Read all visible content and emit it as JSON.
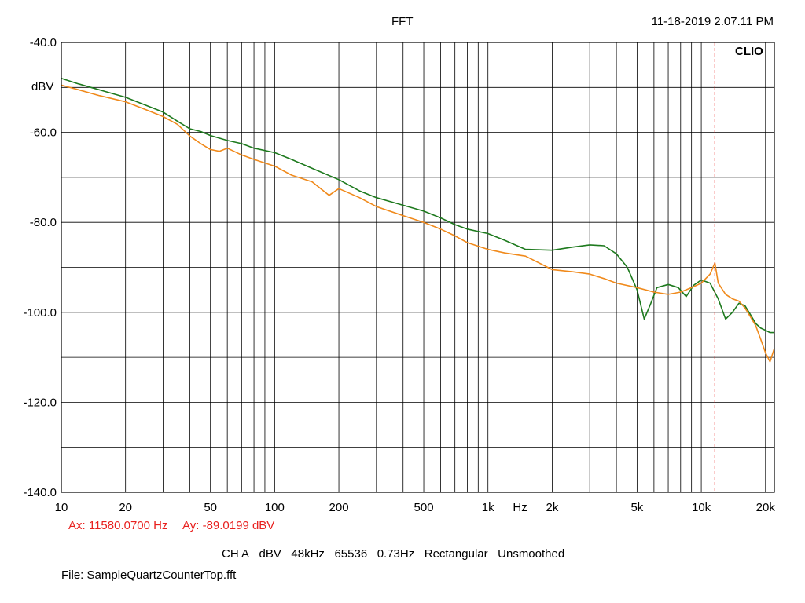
{
  "header": {
    "title": "FFT",
    "timestamp": "11-18-2019 2.07.11 PM"
  },
  "brand": "CLIO",
  "cursor": {
    "ax_text": "Ax: 11580.0700 Hz",
    "ay_text": "Ay: -89.0199 dBV",
    "freq_hz": 11580.07,
    "color": "#e8201e"
  },
  "settings": {
    "channel": "CH A",
    "unit": "dBV",
    "sample_rate": "48kHz",
    "fft_size": "65536",
    "resolution": "0.73Hz",
    "window": "Rectangular",
    "smoothing": "Unsmoothed"
  },
  "file_label": "File: SampleQuartzCounterTop.fft",
  "chart_data": {
    "type": "line",
    "x_scale": "log",
    "xlim": [
      10,
      22000
    ],
    "ylim": [
      -140,
      -40
    ],
    "y_unit_label": "dBV",
    "x_unit_label": "Hz",
    "grid": true,
    "x_ticks": [
      {
        "value": 10,
        "label": "10"
      },
      {
        "value": 20,
        "label": "20"
      },
      {
        "value": 50,
        "label": "50"
      },
      {
        "value": 100,
        "label": "100"
      },
      {
        "value": 200,
        "label": "200"
      },
      {
        "value": 500,
        "label": "500"
      },
      {
        "value": 1000,
        "label": "1k"
      },
      {
        "value": 2000,
        "label": "2k"
      },
      {
        "value": 5000,
        "label": "5k"
      },
      {
        "value": 10000,
        "label": "10k"
      },
      {
        "value": 20000,
        "label": "20k"
      }
    ],
    "y_ticks": [
      {
        "value": -40,
        "label": "-40.0"
      },
      {
        "value": -60,
        "label": "-60.0"
      },
      {
        "value": -80,
        "label": "-80.0"
      },
      {
        "value": -100,
        "label": "-100.0"
      },
      {
        "value": -120,
        "label": "-120.0"
      },
      {
        "value": -140,
        "label": "-140.0"
      }
    ],
    "series": [
      {
        "color": "#1e7a1e",
        "points": [
          [
            10,
            -48.0
          ],
          [
            12,
            -49.2
          ],
          [
            15,
            -50.5
          ],
          [
            20,
            -52.2
          ],
          [
            25,
            -54.0
          ],
          [
            30,
            -55.5
          ],
          [
            35,
            -57.5
          ],
          [
            40,
            -59.2
          ],
          [
            45,
            -59.8
          ],
          [
            50,
            -60.7
          ],
          [
            60,
            -61.8
          ],
          [
            70,
            -62.5
          ],
          [
            80,
            -63.5
          ],
          [
            100,
            -64.5
          ],
          [
            120,
            -66.0
          ],
          [
            150,
            -68.0
          ],
          [
            200,
            -70.5
          ],
          [
            250,
            -73.0
          ],
          [
            300,
            -74.5
          ],
          [
            400,
            -76.2
          ],
          [
            500,
            -77.5
          ],
          [
            600,
            -79.0
          ],
          [
            700,
            -80.5
          ],
          [
            800,
            -81.5
          ],
          [
            1000,
            -82.5
          ],
          [
            1200,
            -84.0
          ],
          [
            1500,
            -86.0
          ],
          [
            2000,
            -86.2
          ],
          [
            2500,
            -85.5
          ],
          [
            3000,
            -85.0
          ],
          [
            3500,
            -85.2
          ],
          [
            4000,
            -87.0
          ],
          [
            4500,
            -90.0
          ],
          [
            5000,
            -95.0
          ],
          [
            5400,
            -101.5
          ],
          [
            5800,
            -98.0
          ],
          [
            6200,
            -94.5
          ],
          [
            7000,
            -93.8
          ],
          [
            7800,
            -94.5
          ],
          [
            8500,
            -96.5
          ],
          [
            9200,
            -94.0
          ],
          [
            10000,
            -92.8
          ],
          [
            11000,
            -93.5
          ],
          [
            12000,
            -97.0
          ],
          [
            13000,
            -101.5
          ],
          [
            14000,
            -100.0
          ],
          [
            15000,
            -98.0
          ],
          [
            16000,
            -98.5
          ],
          [
            17000,
            -100.5
          ],
          [
            18000,
            -102.5
          ],
          [
            19000,
            -103.5
          ],
          [
            20000,
            -104.0
          ],
          [
            21000,
            -104.5
          ],
          [
            22000,
            -104.5
          ]
        ]
      },
      {
        "color": "#f08a1c",
        "points": [
          [
            10,
            -49.5
          ],
          [
            12,
            -50.5
          ],
          [
            15,
            -51.8
          ],
          [
            20,
            -53.2
          ],
          [
            25,
            -55.0
          ],
          [
            30,
            -56.5
          ],
          [
            35,
            -58.2
          ],
          [
            40,
            -60.8
          ],
          [
            45,
            -62.5
          ],
          [
            50,
            -63.8
          ],
          [
            55,
            -64.2
          ],
          [
            60,
            -63.5
          ],
          [
            70,
            -65.0
          ],
          [
            80,
            -66.0
          ],
          [
            100,
            -67.5
          ],
          [
            120,
            -69.5
          ],
          [
            150,
            -71.0
          ],
          [
            180,
            -74.0
          ],
          [
            200,
            -72.5
          ],
          [
            250,
            -74.5
          ],
          [
            300,
            -76.5
          ],
          [
            400,
            -78.5
          ],
          [
            500,
            -80.0
          ],
          [
            600,
            -81.5
          ],
          [
            700,
            -83.0
          ],
          [
            800,
            -84.5
          ],
          [
            1000,
            -86.0
          ],
          [
            1200,
            -86.8
          ],
          [
            1500,
            -87.5
          ],
          [
            2000,
            -90.5
          ],
          [
            2500,
            -91.0
          ],
          [
            3000,
            -91.5
          ],
          [
            3500,
            -92.5
          ],
          [
            4000,
            -93.5
          ],
          [
            5000,
            -94.5
          ],
          [
            6000,
            -95.5
          ],
          [
            7000,
            -96.0
          ],
          [
            8000,
            -95.5
          ],
          [
            9000,
            -94.5
          ],
          [
            10000,
            -93.5
          ],
          [
            11000,
            -91.5
          ],
          [
            11580,
            -89.0
          ],
          [
            12000,
            -93.5
          ],
          [
            13000,
            -96.0
          ],
          [
            14000,
            -97.0
          ],
          [
            15000,
            -97.5
          ],
          [
            16000,
            -99.0
          ],
          [
            17000,
            -101.0
          ],
          [
            18000,
            -103.0
          ],
          [
            19000,
            -106.0
          ],
          [
            20000,
            -109.0
          ],
          [
            21000,
            -111.0
          ],
          [
            22000,
            -108.0
          ]
        ]
      }
    ]
  }
}
